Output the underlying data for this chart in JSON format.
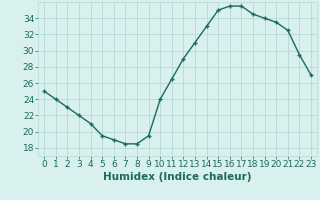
{
  "x": [
    0,
    1,
    2,
    3,
    4,
    5,
    6,
    7,
    8,
    9,
    10,
    11,
    12,
    13,
    14,
    15,
    16,
    17,
    18,
    19,
    20,
    21,
    22,
    23
  ],
  "y": [
    25,
    24,
    23,
    22,
    21,
    19.5,
    19,
    18.5,
    18.5,
    19.5,
    24,
    26.5,
    29,
    31,
    33,
    35,
    35.5,
    35.5,
    34.5,
    34,
    33.5,
    32.5,
    29.5,
    27
  ],
  "line_color": "#1a6b5a",
  "bg_color": "#d8f0ee",
  "grid_color": "#b8d8d4",
  "xlabel": "Humidex (Indice chaleur)",
  "ylim": [
    17,
    36
  ],
  "xlim": [
    -0.5,
    23.5
  ],
  "yticks": [
    18,
    20,
    22,
    24,
    26,
    28,
    30,
    32,
    34
  ],
  "xticks": [
    0,
    1,
    2,
    3,
    4,
    5,
    6,
    7,
    8,
    9,
    10,
    11,
    12,
    13,
    14,
    15,
    16,
    17,
    18,
    19,
    20,
    21,
    22,
    23
  ],
  "marker": "P",
  "marker_size": 3,
  "line_width": 1.0,
  "xlabel_fontsize": 7.5,
  "tick_fontsize": 6.5
}
